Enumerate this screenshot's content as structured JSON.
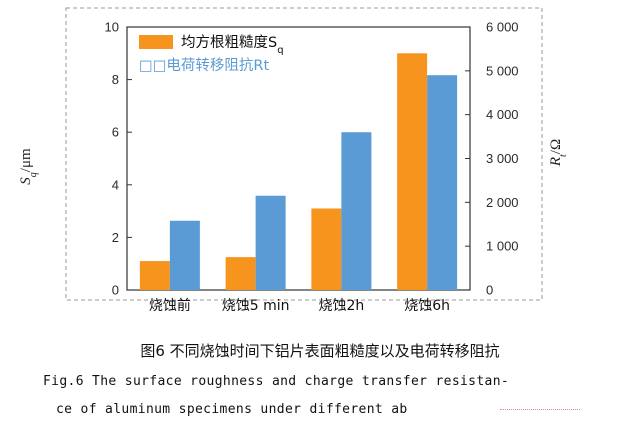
{
  "chart_data": {
    "type": "bar",
    "categories": [
      "烧蚀前",
      "烧蚀5 min",
      "烧蚀2h",
      "烧蚀6h"
    ],
    "series": [
      {
        "name": "均方根粗糙度S",
        "axis": "left",
        "color": "#f7941d",
        "values": [
          1.1,
          1.25,
          3.1,
          9.0
        ]
      },
      {
        "name": "电荷转移阻抗Rt",
        "axis": "right",
        "color": "#5b9bd5",
        "values": [
          1580,
          2150,
          3600,
          4900
        ]
      }
    ],
    "legend_subscript": "q",
    "legend_prefix_glyphs": "□□",
    "y_left": {
      "label": "S",
      "label_subscript": "q",
      "label_unit": "/μm",
      "ylim": [
        0,
        10
      ],
      "ticks": [
        "0",
        "2",
        "4",
        "6",
        "8",
        "10"
      ]
    },
    "y_right": {
      "label": "R",
      "label_subscript": "t",
      "label_unit": "/Ω",
      "ylim": [
        0,
        6000
      ],
      "ticks": [
        "0",
        "1 000",
        "2 000",
        "3 000",
        "4 000",
        "5 000",
        "6 000"
      ]
    },
    "legend_position": "top-left",
    "grid": false
  },
  "caption": {
    "zh": "图6   不同烧蚀时间下铝片表面粗糙度以及电荷转移阻抗",
    "en_line1": "Fig.6  The surface roughness and charge transfer resistan-",
    "en_line2": "ce of aluminum specimens under different ab"
  }
}
